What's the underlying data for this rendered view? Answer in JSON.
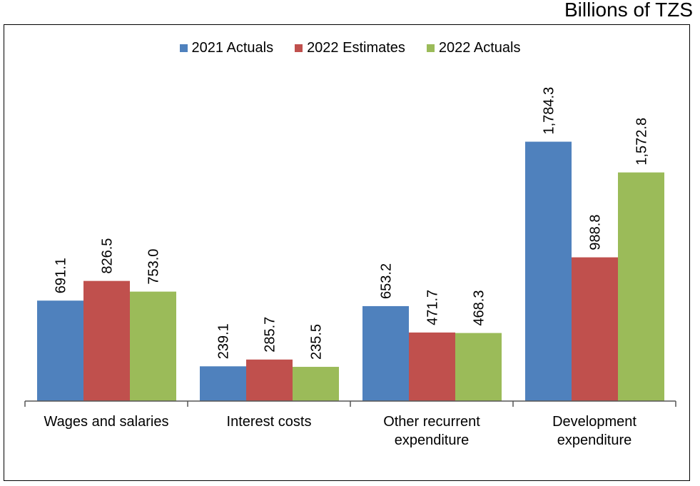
{
  "chart_data": {
    "type": "bar",
    "unit": "Billions of TZS",
    "categories": [
      [
        "Wages and salaries"
      ],
      [
        "Interest costs"
      ],
      [
        "Other recurrent",
        "expenditure"
      ],
      [
        "Development",
        "expenditure"
      ]
    ],
    "series": [
      {
        "name": "2021 Actuals",
        "color": "#4F81BD",
        "values": [
          691.1,
          239.1,
          653.2,
          1784.3
        ],
        "labels": [
          "691.1",
          "239.1",
          "653.2",
          "1,784.3"
        ]
      },
      {
        "name": "2022 Estimates",
        "color": "#C0504D",
        "values": [
          826.5,
          285.7,
          471.7,
          988.8
        ],
        "labels": [
          "826.5",
          "285.7",
          "471.7",
          "988.8"
        ]
      },
      {
        "name": "2022 Actuals",
        "color": "#9BBB59",
        "values": [
          753.0,
          235.5,
          468.3,
          1572.8
        ],
        "labels": [
          "753.0",
          "235.5",
          "468.3",
          "1,572.8"
        ]
      }
    ],
    "ylim": [
      0,
      2000
    ],
    "grid": false,
    "legend": "top-center"
  }
}
